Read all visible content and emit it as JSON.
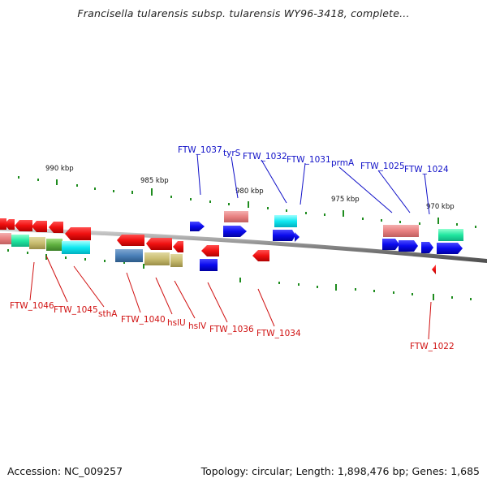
{
  "title": "Francisella tularensis subsp. tularensis WY96-3418, complete...",
  "footer": {
    "accession": "Accession: NC_009257",
    "summary": "Topology: circular; Length: 1,898,476 bp; Genes: 1,685"
  },
  "colors": {
    "forward_label": "#1010c8",
    "reverse_label": "#d01010",
    "backbone": "#888888",
    "tick": "#1e8c1e"
  },
  "scale_labels": [
    "990 kbp",
    "985 kbp",
    "980 kbp",
    "975 kbp",
    "970 kbp"
  ],
  "forward_labels": [
    "FTW_1037",
    "tyrS",
    "FTW_1032",
    "FTW_1031",
    "prmA",
    "FTW_1025",
    "FTW_1024"
  ],
  "reverse_labels": [
    "FTW_1046",
    "FTW_1045",
    "sthA",
    "FTW_1040",
    "hslU",
    "hslV",
    "FTW_1036",
    "FTW_1034",
    "FTW_1022"
  ]
}
